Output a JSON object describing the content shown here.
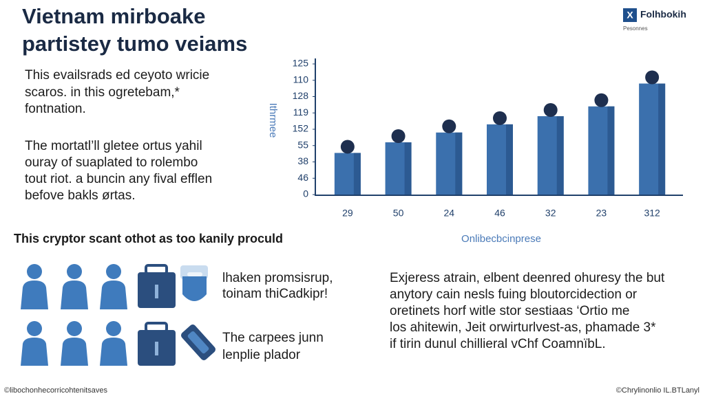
{
  "header": {
    "title": [
      "Vietnam  mirboake",
      "partistey tumo veiams"
    ],
    "logo": "Folhbokih",
    "logo_sub": "Pesonnes"
  },
  "intro": [
    "This evailsrads ed ceyoto wricie",
    "scaros. in this ogretebam,*",
    "fontnation."
  ],
  "paragraph": [
    "The mortatl’ll gletee ortus yahil",
    "ouray of suaplated to rolembo",
    "tout riot. a buncin any fival efflen",
    "befove bakls ørtas."
  ],
  "chart_data": {
    "type": "bar",
    "y_label": "Ithrmee",
    "x_label": "Onlibecbcinprese",
    "categories": [
      "29",
      "50",
      "24",
      "46",
      "32",
      "23",
      "312"
    ],
    "values": [
      51,
      64,
      76,
      86,
      96,
      108,
      136
    ],
    "color": "#3b70ad",
    "marker_color": "#1e2f4f",
    "ylim": [
      0,
      160
    ],
    "yticks": [
      0,
      {
        "value": 20,
        "label": "46"
      },
      {
        "value": 40,
        "label": "38"
      },
      {
        "value": 60,
        "label": "55"
      },
      {
        "value": 80,
        "label": "152"
      },
      {
        "value": 100,
        "label": "119"
      },
      {
        "value": 120,
        "label": "128"
      },
      {
        "value": 140,
        "label": "110"
      },
      {
        "value": 160,
        "label": "125"
      }
    ],
    "grid": false
  },
  "section": {
    "heading": "This cryptor scant othot as too kanily proculd",
    "item1": [
      "lhaken promsisrup,",
      "toinam thiCadkipr!"
    ],
    "item2": [
      "The carpees junn",
      "lenplie plador"
    ],
    "side": [
      "Exjeress atrain, elbent deenred ohuresy the but",
      "anytory cain nesls fuing bloutorcidection or",
      "oretinets horf witle stor sestiaas ‘Ortio me",
      "los ahitewin, Jeit orwirturlvest-as, phamade  3*",
      "if tirin dunul chillieral vChf CoamnïbL."
    ]
  },
  "footer": {
    "left": "©libochonhecorricohtenitsaves",
    "right": "©Chrylinonlio IL.BTLanyl"
  }
}
